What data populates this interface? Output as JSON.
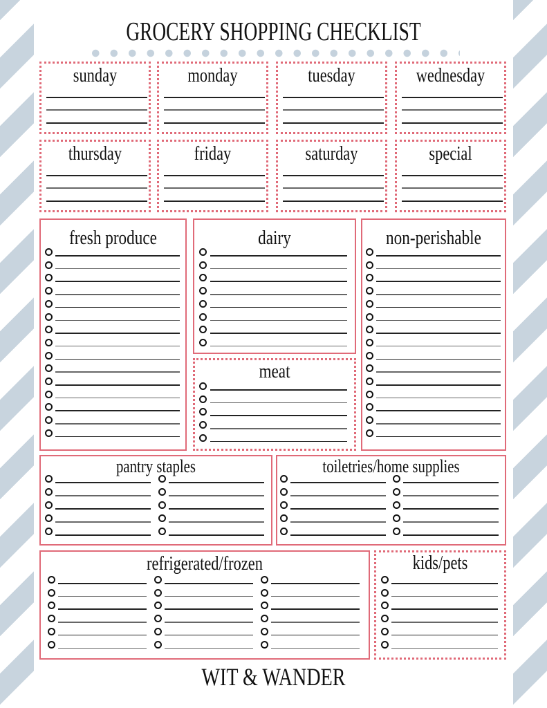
{
  "title": "GROCERY SHOPPING CHECKLIST",
  "days": [
    "sunday",
    "monday",
    "tuesday",
    "wednesday",
    "thursday",
    "friday",
    "saturday",
    "special"
  ],
  "sections": {
    "fresh_produce": "fresh produce",
    "dairy": "dairy",
    "meat": "meat",
    "non_perishable": "non-perishable",
    "pantry_staples": "pantry staples",
    "toiletries": "toiletries/home supplies",
    "refrigerated": "refrigerated/frozen",
    "kids_pets": "kids/pets"
  },
  "footer": "WIT & WANDER",
  "colors": {
    "border": "#e06a78",
    "stripe": "#c8d4de",
    "dots": "#c5d2dd"
  }
}
